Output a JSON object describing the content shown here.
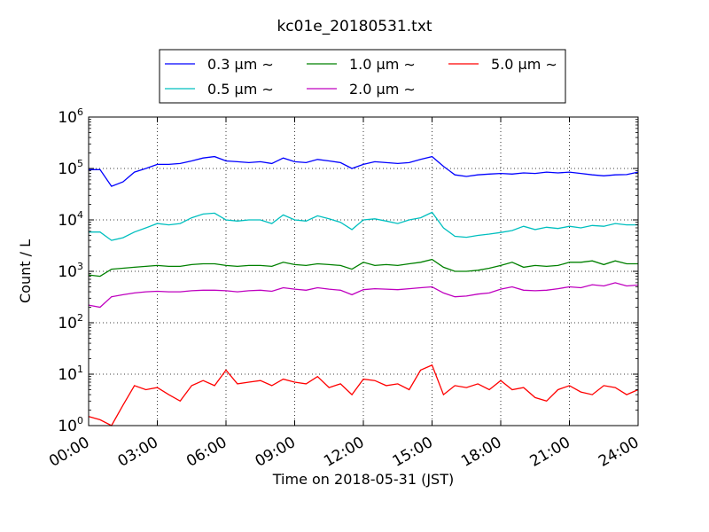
{
  "chart_data": {
    "type": "line",
    "title": "kc01e_20180531.txt",
    "xlabel": "Time on 2018-05-31 (JST)",
    "ylabel": "Count / L",
    "y_scale": "log",
    "ylim": [
      1,
      1000000
    ],
    "xlim": [
      "00:00",
      "24:00"
    ],
    "x_ticks": [
      "00:00",
      "03:00",
      "06:00",
      "09:00",
      "12:00",
      "15:00",
      "18:00",
      "21:00",
      "24:00"
    ],
    "y_ticks": [
      {
        "value": 1,
        "base": "10",
        "exp": "0"
      },
      {
        "value": 10,
        "base": "10",
        "exp": "1"
      },
      {
        "value": 100,
        "base": "10",
        "exp": "2"
      },
      {
        "value": 1000,
        "base": "10",
        "exp": "3"
      },
      {
        "value": 10000,
        "base": "10",
        "exp": "4"
      },
      {
        "value": 100000,
        "base": "10",
        "exp": "5"
      },
      {
        "value": 1000000,
        "base": "10",
        "exp": "6"
      }
    ],
    "grid": true,
    "legend_position": "top-center",
    "x_hours": [
      0,
      0.5,
      1,
      1.5,
      2,
      2.5,
      3,
      3.5,
      4,
      4.5,
      5,
      5.5,
      6,
      6.5,
      7,
      7.5,
      8,
      8.5,
      9,
      9.5,
      10,
      10.5,
      11,
      11.5,
      12,
      12.5,
      13,
      13.5,
      14,
      14.5,
      15,
      15.5,
      16,
      16.5,
      17,
      17.5,
      18,
      18.5,
      19,
      19.5,
      20,
      20.5,
      21,
      21.5,
      22,
      22.5,
      23,
      23.5,
      24
    ],
    "series": [
      {
        "name": "0.3 μm ∼",
        "color": "#0000ff",
        "values": [
          95000,
          95000,
          45000,
          55000,
          85000,
          100000,
          120000,
          120000,
          125000,
          140000,
          160000,
          170000,
          140000,
          135000,
          130000,
          135000,
          125000,
          160000,
          135000,
          130000,
          150000,
          140000,
          130000,
          100000,
          120000,
          135000,
          130000,
          125000,
          130000,
          150000,
          170000,
          110000,
          75000,
          70000,
          75000,
          78000,
          80000,
          78000,
          82000,
          80000,
          85000,
          82000,
          85000,
          80000,
          75000,
          72000,
          75000,
          76000,
          85000
        ]
      },
      {
        "name": "0.5 μm ∼",
        "color": "#00bfbf",
        "values": [
          5800,
          5800,
          4000,
          4500,
          5800,
          7000,
          8500,
          8000,
          8500,
          11000,
          13000,
          13500,
          10000,
          9500,
          10000,
          10000,
          8500,
          12500,
          10000,
          9500,
          12000,
          10500,
          9000,
          6500,
          10000,
          10500,
          9500,
          8500,
          10000,
          11000,
          14000,
          7000,
          4800,
          4600,
          5000,
          5300,
          5700,
          6200,
          7500,
          6500,
          7200,
          6800,
          7500,
          7000,
          7800,
          7500,
          8500,
          8000,
          8000
        ]
      },
      {
        "name": "1.0 μm ∼",
        "color": "#008000",
        "values": [
          850,
          800,
          1100,
          1150,
          1200,
          1250,
          1300,
          1250,
          1250,
          1350,
          1400,
          1400,
          1300,
          1250,
          1300,
          1300,
          1250,
          1500,
          1350,
          1300,
          1400,
          1350,
          1300,
          1100,
          1500,
          1300,
          1350,
          1300,
          1400,
          1500,
          1700,
          1200,
          1000,
          1000,
          1050,
          1150,
          1300,
          1500,
          1200,
          1300,
          1250,
          1300,
          1500,
          1500,
          1600,
          1350,
          1600,
          1400,
          1400
        ]
      },
      {
        "name": "2.0 μm ∼",
        "color": "#bf00bf",
        "values": [
          220,
          200,
          320,
          350,
          380,
          400,
          410,
          400,
          400,
          420,
          430,
          430,
          420,
          400,
          420,
          430,
          410,
          480,
          450,
          430,
          480,
          450,
          430,
          350,
          440,
          460,
          450,
          440,
          460,
          480,
          500,
          380,
          320,
          330,
          360,
          380,
          450,
          500,
          430,
          420,
          430,
          460,
          500,
          480,
          550,
          520,
          600,
          520,
          540
        ]
      },
      {
        "name": "5.0 μm ∼",
        "color": "#ff0000",
        "values": [
          1.5,
          1.3,
          1.0,
          2.5,
          6.0,
          5.0,
          5.5,
          4.0,
          3.0,
          6.0,
          7.5,
          6.0,
          12.0,
          6.5,
          7.0,
          7.5,
          6.0,
          8.0,
          7.0,
          6.5,
          9.0,
          5.5,
          6.5,
          4.0,
          8.0,
          7.5,
          6.0,
          6.5,
          5.0,
          12.0,
          15.0,
          4.0,
          6.0,
          5.5,
          6.5,
          5.0,
          7.5,
          5.0,
          5.5,
          3.5,
          3.0,
          5.0,
          6.0,
          4.5,
          4.0,
          6.0,
          5.5,
          4.0,
          5.0
        ]
      }
    ]
  }
}
